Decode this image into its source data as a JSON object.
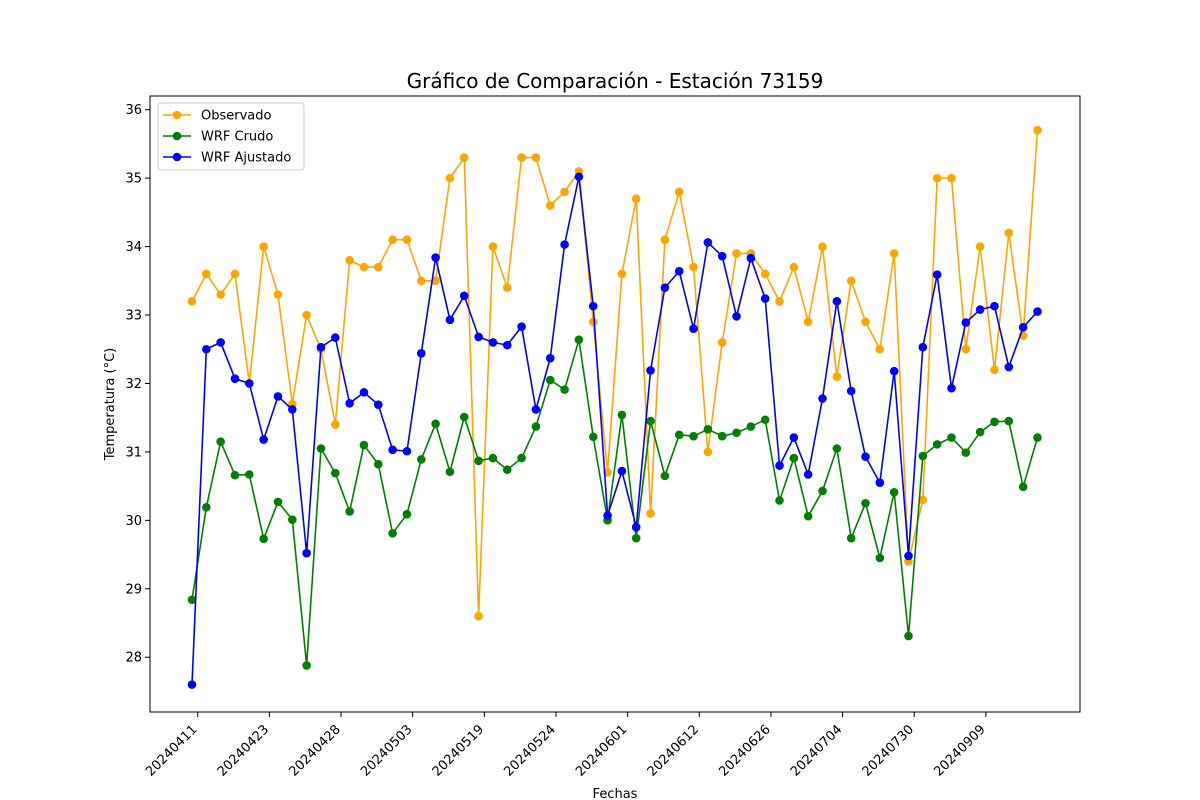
{
  "chart_data": {
    "type": "line",
    "title": "Gráfico de Comparación - Estación 73159",
    "xlabel": "Fechas",
    "ylabel": "Temperatura (°C)",
    "ylim": [
      27.2,
      36.2
    ],
    "yticks": [
      28,
      29,
      30,
      31,
      32,
      33,
      34,
      35,
      36
    ],
    "xtick_labels": [
      "20240411",
      "20240423",
      "20240428",
      "20240503",
      "20240519",
      "20240524",
      "20240601",
      "20240612",
      "20240626",
      "20240704",
      "20240730",
      "20240909"
    ],
    "xtick_indices": [
      0.4,
      5.4,
      10.4,
      15.4,
      20.4,
      25.4,
      30.4,
      35.4,
      40.4,
      45.4,
      50.4,
      55.4
    ],
    "x_count": 60,
    "grid": false,
    "legend_position": "top-left",
    "series": [
      {
        "name": "Observado",
        "color": "#ffa500",
        "values": [
          33.2,
          33.6,
          33.3,
          33.6,
          32.0,
          34.0,
          33.3,
          31.7,
          33.0,
          32.5,
          31.4,
          33.8,
          33.7,
          33.7,
          34.1,
          34.1,
          33.5,
          33.5,
          35.0,
          35.3,
          28.6,
          34.0,
          33.4,
          35.3,
          35.3,
          34.6,
          34.8,
          35.1,
          32.9,
          30.7,
          33.6,
          34.7,
          30.1,
          34.1,
          34.8,
          33.7,
          31.0,
          32.6,
          33.9,
          33.9,
          33.6,
          33.2,
          33.7,
          32.9,
          34.0,
          32.1,
          33.5,
          32.9,
          32.5,
          33.9,
          29.4,
          30.3,
          35.0,
          35.0,
          32.5,
          34.0,
          32.2,
          34.2,
          32.7,
          35.7
        ]
      },
      {
        "name": "WRF Crudo",
        "color": "#008000",
        "values": [
          28.84,
          30.19,
          31.15,
          30.66,
          30.67,
          29.73,
          30.27,
          30.01,
          27.88,
          31.05,
          30.69,
          30.13,
          31.1,
          30.82,
          29.81,
          30.09,
          30.89,
          31.41,
          30.71,
          31.51,
          30.87,
          30.91,
          30.74,
          30.91,
          31.37,
          32.05,
          31.91,
          32.64,
          31.22,
          30.0,
          31.54,
          29.74,
          31.45,
          30.65,
          31.25,
          31.23,
          31.33,
          31.23,
          31.28,
          31.37,
          31.47,
          30.29,
          30.91,
          30.06,
          30.43,
          31.05,
          29.74,
          30.25,
          29.45,
          30.41,
          28.31,
          30.94,
          31.11,
          31.21,
          30.99,
          31.29,
          31.44,
          31.45,
          30.49,
          31.21
        ]
      },
      {
        "name": "WRF Ajustado",
        "color": "#0000ff",
        "values": [
          27.6,
          32.5,
          32.6,
          32.07,
          32.0,
          31.18,
          31.81,
          31.62,
          29.52,
          32.53,
          32.67,
          31.71,
          31.87,
          31.69,
          31.03,
          31.01,
          32.44,
          33.84,
          32.93,
          33.28,
          32.68,
          32.6,
          32.56,
          32.83,
          31.62,
          32.37,
          34.03,
          35.02,
          33.13,
          30.07,
          30.72,
          29.9,
          32.19,
          33.4,
          33.64,
          32.8,
          34.06,
          33.86,
          32.98,
          33.83,
          33.24,
          30.8,
          31.21,
          30.67,
          31.78,
          33.2,
          31.89,
          30.93,
          30.55,
          32.18,
          29.48,
          32.53,
          33.59,
          31.93,
          32.89,
          33.08,
          33.13,
          32.24,
          32.82,
          33.05
        ]
      }
    ]
  }
}
